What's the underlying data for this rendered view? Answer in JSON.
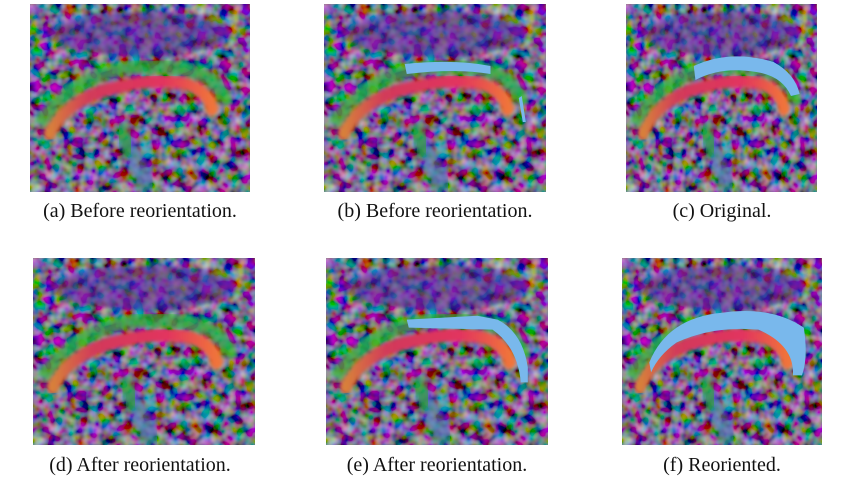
{
  "figure": {
    "panels": [
      {
        "caption": "(a) Before reorientation."
      },
      {
        "caption": "(b) Before reorientation."
      },
      {
        "caption": "(c) Original."
      },
      {
        "caption": "(d) After reorientation."
      },
      {
        "caption": "(e) After reorientation."
      },
      {
        "caption": "(f) Reoriented."
      }
    ]
  }
}
